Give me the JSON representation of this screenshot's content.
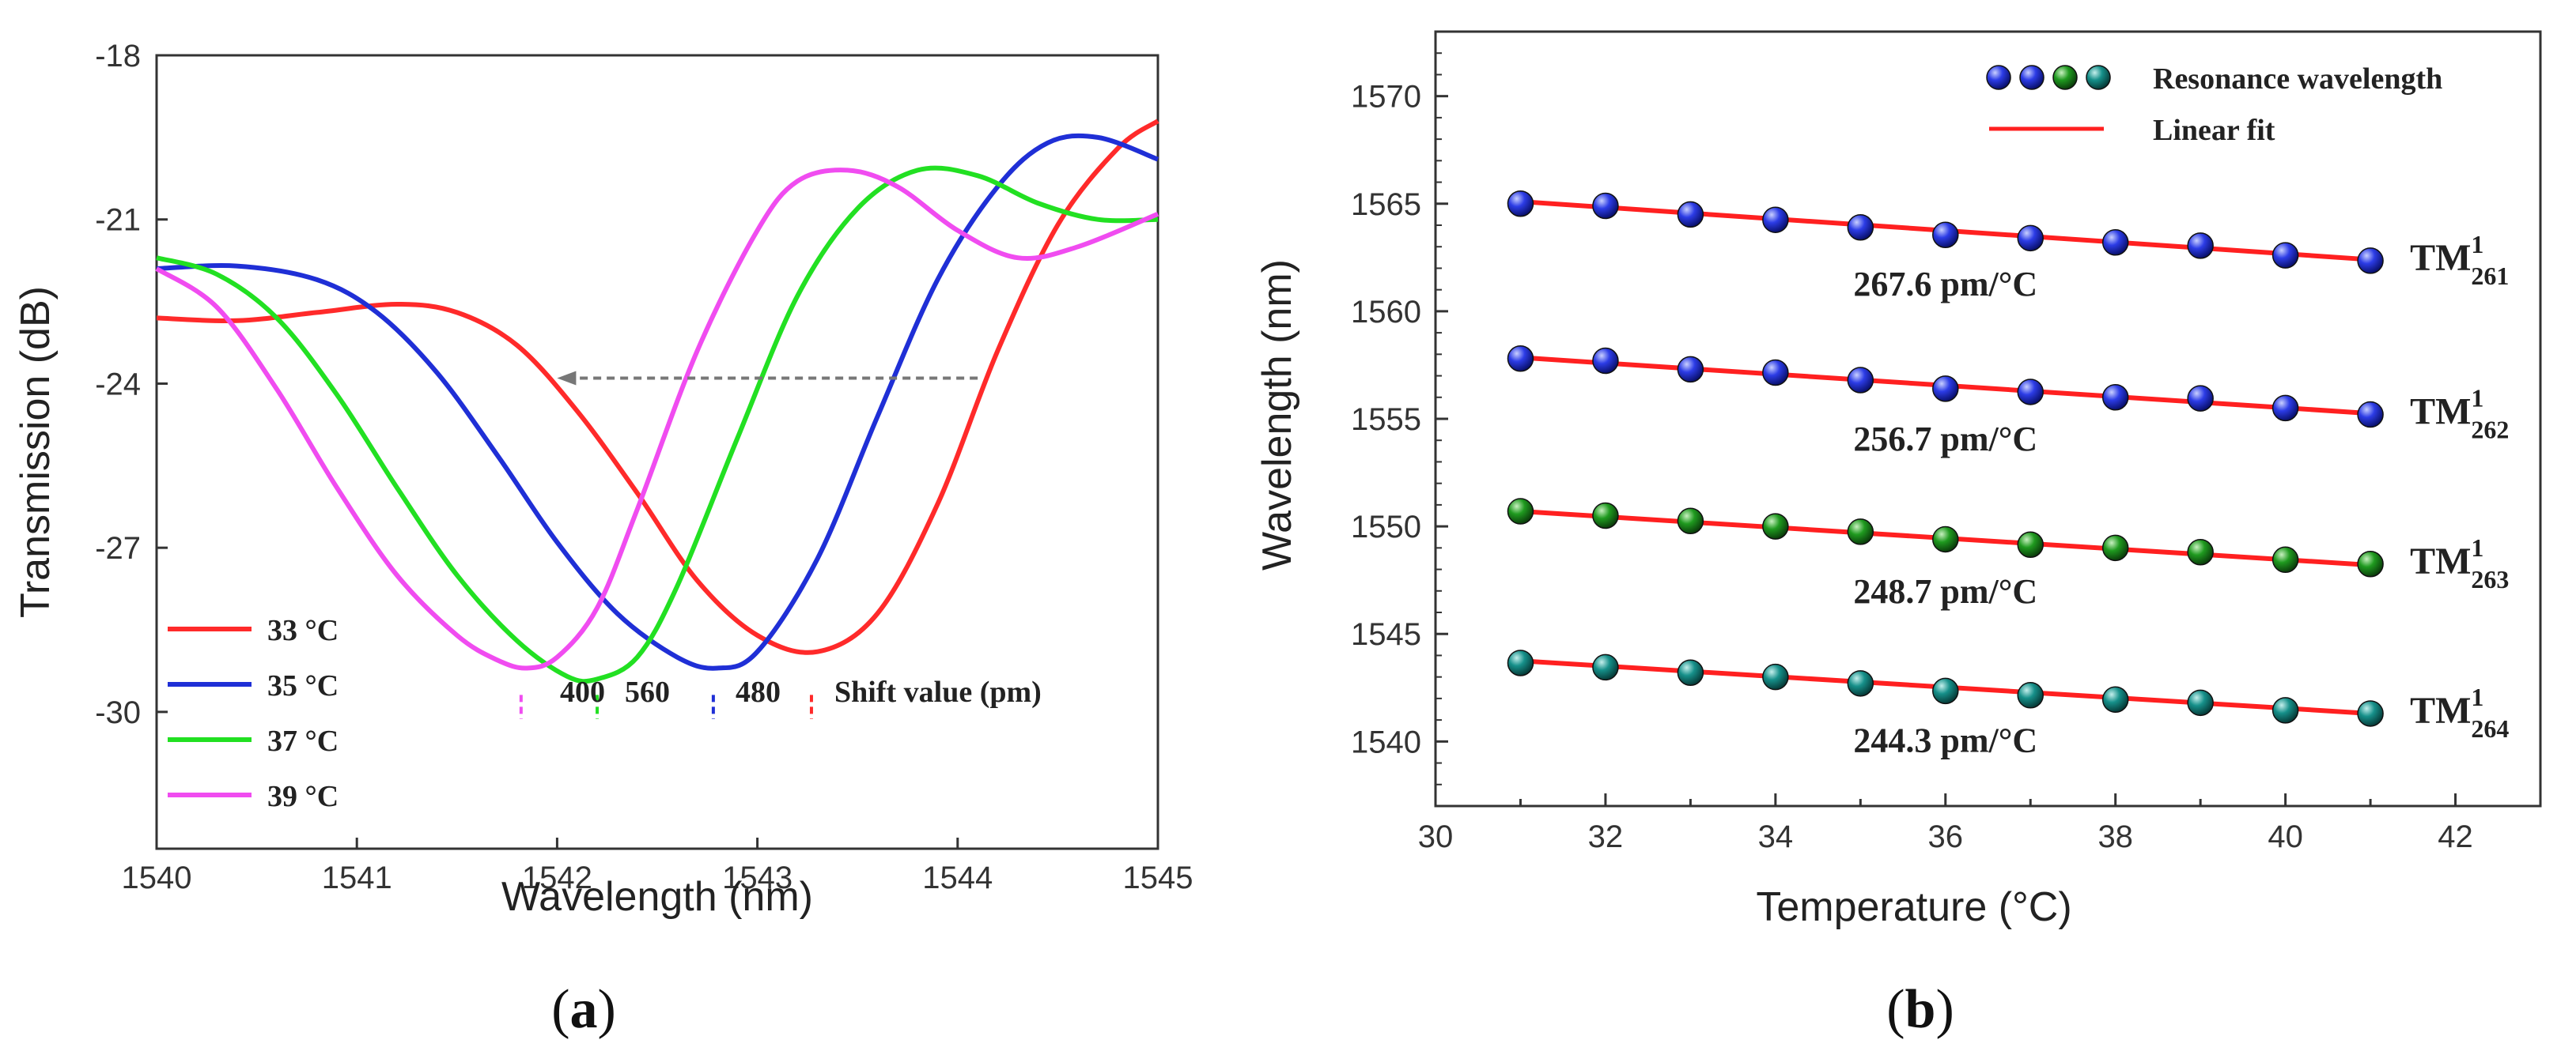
{
  "chart_data": [
    {
      "type": "line",
      "panel_label": "a",
      "xlabel": "Wavelength (nm)",
      "ylabel": "Transmission (dB)",
      "xlim": [
        1540,
        1545
      ],
      "ylim": [
        -32.5,
        -18
      ],
      "xticks": [
        "1540",
        "1541",
        "1542",
        "1543",
        "1544",
        "1545"
      ],
      "yticks": [
        "-18",
        "-21",
        "-24",
        "-27",
        "-30"
      ],
      "series": [
        {
          "name": "33 °C",
          "color": "#ff2a2a",
          "x": [
            1540,
            1540.4,
            1540.8,
            1541.2,
            1541.5,
            1541.8,
            1542.1,
            1542.4,
            1542.7,
            1543,
            1543.3,
            1543.6,
            1543.9,
            1544.2,
            1544.5,
            1544.8,
            1545
          ],
          "y": [
            -22.8,
            -22.85,
            -22.7,
            -22.55,
            -22.7,
            -23.3,
            -24.5,
            -26.0,
            -27.6,
            -28.6,
            -28.9,
            -28.2,
            -26.2,
            -23.4,
            -21.1,
            -19.7,
            -19.2
          ]
        },
        {
          "name": "35 °C",
          "color": "#1f2fd6",
          "x": [
            1540,
            1540.4,
            1540.8,
            1541.1,
            1541.4,
            1541.7,
            1542,
            1542.3,
            1542.6,
            1542.8,
            1543,
            1543.3,
            1543.6,
            1543.9,
            1544.2,
            1544.45,
            1544.7,
            1545
          ],
          "y": [
            -21.9,
            -21.85,
            -22.1,
            -22.7,
            -23.8,
            -25.3,
            -26.9,
            -28.2,
            -29.0,
            -29.2,
            -28.9,
            -27.2,
            -24.6,
            -22.1,
            -20.4,
            -19.6,
            -19.5,
            -19.9
          ]
        },
        {
          "name": "37 °C",
          "color": "#22e022",
          "x": [
            1540,
            1540.3,
            1540.6,
            1540.9,
            1541.2,
            1541.5,
            1541.8,
            1542.05,
            1542.2,
            1542.4,
            1542.6,
            1542.9,
            1543.2,
            1543.5,
            1543.8,
            1544.1,
            1544.4,
            1544.7,
            1545
          ],
          "y": [
            -21.7,
            -22.0,
            -22.8,
            -24.2,
            -25.9,
            -27.5,
            -28.7,
            -29.35,
            -29.4,
            -29.0,
            -27.7,
            -25.0,
            -22.4,
            -20.8,
            -20.1,
            -20.2,
            -20.7,
            -21.0,
            -21.0
          ]
        },
        {
          "name": "39 °C",
          "color": "#f04cf0",
          "x": [
            1540,
            1540.3,
            1540.6,
            1540.9,
            1541.2,
            1541.5,
            1541.7,
            1541.85,
            1542,
            1542.2,
            1542.4,
            1542.7,
            1543,
            1543.2,
            1543.45,
            1543.7,
            1544,
            1544.3,
            1544.6,
            1545
          ],
          "y": [
            -21.9,
            -22.6,
            -24.1,
            -25.9,
            -27.5,
            -28.6,
            -29.05,
            -29.2,
            -29.0,
            -28.1,
            -26.3,
            -23.4,
            -21.2,
            -20.3,
            -20.1,
            -20.4,
            -21.2,
            -21.7,
            -21.5,
            -20.9
          ]
        }
      ],
      "arrow_annotation": {
        "from_x": 1544.1,
        "to_x": 1542.0,
        "y": -23.9
      },
      "shift_markers": [
        {
          "x": 1541.82,
          "color": "#f04cf0"
        },
        {
          "x": 1542.2,
          "color": "#22e022"
        },
        {
          "x": 1542.78,
          "color": "#1f2fd6"
        },
        {
          "x": 1543.27,
          "color": "#ff2a2a"
        }
      ],
      "shift_labels": [
        "400",
        "560",
        "480"
      ],
      "shift_caption": "Shift value (pm)",
      "legend": [
        "33 °C",
        "35 °C",
        "37 °C",
        "39 °C"
      ],
      "legend_position": "bottom-left"
    },
    {
      "type": "scatter",
      "panel_label": "b",
      "xlabel": "Temperature (°C)",
      "ylabel": "Wavelength (nm)",
      "xlim": [
        30,
        43
      ],
      "ylim": [
        1537,
        1573
      ],
      "xticks": [
        "30",
        "32",
        "34",
        "36",
        "38",
        "40",
        "42"
      ],
      "yticks": [
        "1540",
        "1545",
        "1550",
        "1555",
        "1560",
        "1565",
        "1570"
      ],
      "x": [
        31,
        32,
        33,
        34,
        35,
        36,
        37,
        38,
        39,
        40,
        41
      ],
      "series": [
        {
          "name": "TM",
          "sub": "261",
          "sup": "1",
          "color": "#1f2fe0",
          "slope_label": "267.6 pm/°C",
          "values": [
            1565.0,
            1564.9,
            1564.5,
            1564.25,
            1563.9,
            1563.55,
            1563.4,
            1563.2,
            1563.05,
            1562.6,
            1562.35
          ],
          "fit": [
            1565.1,
            1562.4
          ]
        },
        {
          "name": "TM",
          "sub": "262",
          "sup": "1",
          "color": "#1f2fe0",
          "slope_label": "256.7 pm/°C",
          "values": [
            1557.8,
            1557.7,
            1557.3,
            1557.15,
            1556.8,
            1556.4,
            1556.25,
            1556.0,
            1555.95,
            1555.5,
            1555.2
          ],
          "fit": [
            1557.85,
            1555.25
          ]
        },
        {
          "name": "TM",
          "sub": "263",
          "sup": "1",
          "color": "#1c8a1c",
          "slope_label": "248.7 pm/°C",
          "values": [
            1550.7,
            1550.5,
            1550.25,
            1550.0,
            1549.75,
            1549.4,
            1549.15,
            1549.0,
            1548.8,
            1548.45,
            1548.25
          ],
          "fit": [
            1550.7,
            1548.2
          ]
        },
        {
          "name": "TM",
          "sub": "264",
          "sup": "1",
          "color": "#17908a",
          "slope_label": "244.3 pm/°C",
          "values": [
            1543.65,
            1543.45,
            1543.2,
            1543.0,
            1542.7,
            1542.35,
            1542.15,
            1541.95,
            1541.8,
            1541.45,
            1541.3
          ],
          "fit": [
            1543.75,
            1541.3
          ]
        }
      ],
      "fit_color": "#ff2020",
      "legend": [
        "Resonance wavelength",
        "Linear fit"
      ],
      "legend_position": "top-right"
    }
  ]
}
